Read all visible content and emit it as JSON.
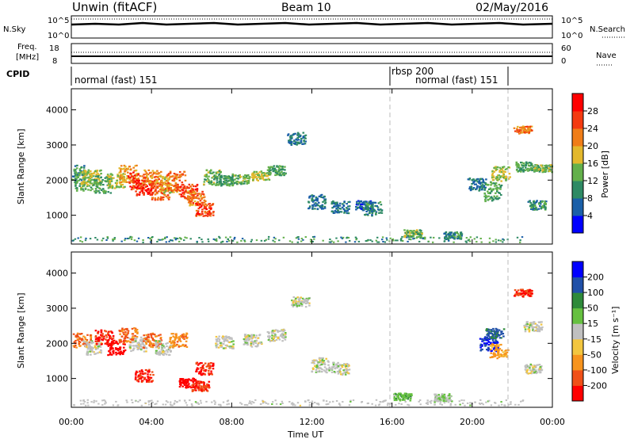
{
  "header": {
    "station": "Unwin (fitACF)",
    "beam": "Beam 10",
    "date": "02/May/2016"
  },
  "top_panels": {
    "nsky_label": "N.Sky",
    "nsky_ticks": [
      "10^5",
      "10^0"
    ],
    "nsearch_label": "N.Search",
    "nsearch_ticks": [
      "10^5",
      "10^0"
    ],
    "freq_label_1": "Freq.",
    "freq_label_2": "[MHz]",
    "freq_ticks": [
      "18",
      "8"
    ],
    "nave_label": "Nave",
    "nave_ticks": [
      "60",
      "0"
    ],
    "cpid_label": "CPID",
    "cpid_segments": [
      {
        "label": "normal (fast) 151"
      },
      {
        "label": "rbsp 200"
      },
      {
        "label": "normal (fast) 151"
      }
    ]
  },
  "x_axis": {
    "label": "Time UT",
    "ticks": [
      "00:00",
      "04:00",
      "08:00",
      "12:00",
      "16:00",
      "20:00",
      "00:00"
    ]
  },
  "y_axis": {
    "label": "Slant Range [km]",
    "ticks": [
      "1000",
      "2000",
      "3000",
      "4000"
    ]
  },
  "power_scale": {
    "label": "Power [dB]",
    "ticks": [
      "4",
      "8",
      "12",
      "16",
      "20",
      "24",
      "28"
    ],
    "colors": [
      "#0000ff",
      "#1a5fa8",
      "#2e8a64",
      "#63b04b",
      "#e3b82c",
      "#f07d18",
      "#f43a10",
      "#ff0000"
    ]
  },
  "velocity_scale": {
    "label": "Velocity [m s⁻¹]",
    "ticks": [
      "200",
      "100",
      "50",
      "15",
      "-15",
      "-50",
      "-100",
      "-200"
    ],
    "colors": [
      "#0000ff",
      "#2050a8",
      "#2e8a3a",
      "#66c040",
      "#c0c0c0",
      "#f3c63f",
      "#f7941d",
      "#f05018",
      "#ff0000"
    ]
  },
  "chart_data": [
    {
      "type": "heatmap",
      "title": "Power",
      "xlabel": "Time UT",
      "ylabel": "Slant Range [km]",
      "xlim": [
        0,
        24
      ],
      "ylim": [
        180,
        4600
      ],
      "colorbar": {
        "label": "Power [dB]",
        "range": [
          0,
          32
        ]
      },
      "cells": [
        [
          0.2,
          2200,
          350,
          10
        ],
        [
          0.6,
          2000,
          400,
          14
        ],
        [
          1.0,
          2100,
          300,
          16
        ],
        [
          1.5,
          1900,
          350,
          12
        ],
        [
          2.2,
          2000,
          300,
          16
        ],
        [
          2.8,
          2200,
          350,
          20
        ],
        [
          3.2,
          2000,
          350,
          26
        ],
        [
          3.6,
          1800,
          300,
          28
        ],
        [
          4.0,
          2100,
          300,
          22
        ],
        [
          4.4,
          1700,
          350,
          24
        ],
        [
          4.8,
          1900,
          350,
          18
        ],
        [
          5.2,
          2000,
          400,
          24
        ],
        [
          5.8,
          1700,
          300,
          26
        ],
        [
          6.2,
          1500,
          300,
          22
        ],
        [
          6.6,
          1200,
          300,
          26
        ],
        [
          7.0,
          2100,
          300,
          14
        ],
        [
          7.6,
          2000,
          200,
          12
        ],
        [
          8.4,
          2050,
          200,
          14
        ],
        [
          9.4,
          2150,
          200,
          16
        ],
        [
          10.2,
          2300,
          200,
          12
        ],
        [
          11.2,
          3200,
          250,
          8
        ],
        [
          12.2,
          1400,
          300,
          8
        ],
        [
          13.4,
          1250,
          250,
          8
        ],
        [
          14.6,
          1300,
          200,
          6
        ],
        [
          15.0,
          1200,
          300,
          10
        ],
        [
          17.0,
          500,
          150,
          14
        ],
        [
          19.0,
          450,
          150,
          10
        ],
        [
          20.2,
          1900,
          250,
          8
        ],
        [
          21.0,
          1700,
          400,
          12
        ],
        [
          21.4,
          2200,
          300,
          16
        ],
        [
          22.5,
          3450,
          150,
          22
        ],
        [
          22.6,
          2400,
          200,
          12
        ],
        [
          23.2,
          1300,
          200,
          10
        ],
        [
          23.5,
          2350,
          150,
          14
        ]
      ]
    },
    {
      "type": "heatmap",
      "title": "Velocity",
      "xlabel": "Time UT",
      "ylabel": "Slant Range [km]",
      "xlim": [
        0,
        24
      ],
      "ylim": [
        180,
        4600
      ],
      "colorbar": {
        "label": "Velocity [m s⁻¹]",
        "range": [
          -250,
          250
        ]
      },
      "cells": [
        [
          0.5,
          2100,
          300,
          -150
        ],
        [
          1.0,
          1900,
          300,
          0
        ],
        [
          1.6,
          2200,
          300,
          -200
        ],
        [
          2.2,
          1900,
          300,
          -250
        ],
        [
          2.8,
          2250,
          300,
          -150
        ],
        [
          3.3,
          2000,
          300,
          0
        ],
        [
          3.6,
          1100,
          250,
          -200
        ],
        [
          4.0,
          2100,
          300,
          -150
        ],
        [
          4.6,
          1900,
          300,
          0
        ],
        [
          5.3,
          2100,
          300,
          -120
        ],
        [
          5.8,
          900,
          200,
          -250
        ],
        [
          6.4,
          800,
          200,
          -200
        ],
        [
          6.6,
          1300,
          250,
          -200
        ],
        [
          7.6,
          2050,
          250,
          0
        ],
        [
          9.0,
          2100,
          250,
          0
        ],
        [
          10.2,
          2250,
          250,
          0
        ],
        [
          11.4,
          3200,
          200,
          0
        ],
        [
          12.4,
          1400,
          300,
          0
        ],
        [
          13.4,
          1300,
          250,
          0
        ],
        [
          16.5,
          500,
          150,
          60
        ],
        [
          18.5,
          480,
          150,
          30
        ],
        [
          20.8,
          2000,
          300,
          200
        ],
        [
          21.3,
          1800,
          300,
          -100
        ],
        [
          21.1,
          2300,
          200,
          150
        ],
        [
          22.5,
          3450,
          150,
          -200
        ],
        [
          23.0,
          2500,
          200,
          0
        ],
        [
          23.0,
          1300,
          200,
          0
        ]
      ]
    }
  ]
}
